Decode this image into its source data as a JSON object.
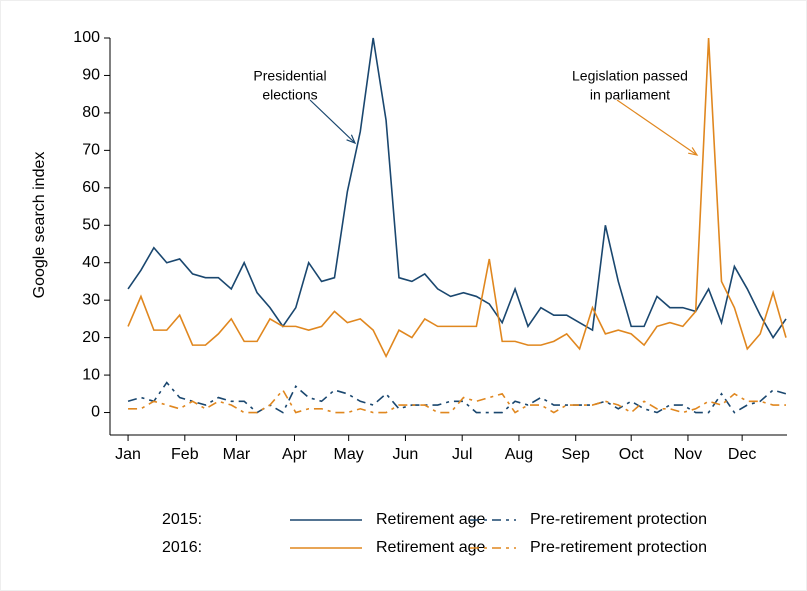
{
  "chart_data": {
    "type": "line",
    "y_label": "Google search index",
    "ylim": [
      -6,
      100
    ],
    "yticks": [
      0,
      10,
      20,
      30,
      40,
      50,
      60,
      70,
      80,
      90,
      100
    ],
    "xlim": [
      -0.4,
      52
    ],
    "xticks": [
      {
        "value": 1,
        "label": "Jan"
      },
      {
        "value": 5.4,
        "label": "Feb"
      },
      {
        "value": 9.4,
        "label": "Mar"
      },
      {
        "value": 13.9,
        "label": "Apr"
      },
      {
        "value": 18.1,
        "label": "May"
      },
      {
        "value": 22.5,
        "label": "Jun"
      },
      {
        "value": 26.9,
        "label": "Jul"
      },
      {
        "value": 31.3,
        "label": "Aug"
      },
      {
        "value": 35.7,
        "label": "Sep"
      },
      {
        "value": 40,
        "label": "Oct"
      },
      {
        "value": 44.4,
        "label": "Nov"
      },
      {
        "value": 48.6,
        "label": "Dec"
      }
    ],
    "x": [
      1,
      2,
      3,
      4,
      5,
      6,
      7,
      8,
      9,
      10,
      11,
      12,
      13,
      14,
      15,
      16,
      17,
      18,
      19,
      20,
      21,
      22,
      23,
      24,
      25,
      26,
      27,
      28,
      29,
      30,
      31,
      32,
      33,
      34,
      35,
      36,
      37,
      38,
      39,
      40,
      41,
      42,
      43,
      44,
      45,
      46,
      47,
      48,
      49,
      50,
      51,
      52
    ],
    "groups": [
      {
        "name": "2015:",
        "series": [
          {
            "name": "Retirement age",
            "color": "#1a476f",
            "dashed": false,
            "values": [
              33,
              38,
              44,
              40,
              41,
              37,
              36,
              36,
              33,
              40,
              32,
              28,
              23,
              28,
              40,
              35,
              36,
              59,
              75,
              100,
              78,
              36,
              35,
              37,
              33,
              31,
              32,
              31,
              29,
              24,
              33,
              23,
              28,
              26,
              26,
              24,
              22,
              50,
              35,
              23,
              23,
              31,
              28,
              28,
              27,
              33,
              24,
              39,
              33,
              26,
              20,
              25
            ]
          },
          {
            "name": "Pre-retirement protection",
            "color": "#1a476f",
            "dashed": true,
            "values": [
              3,
              4,
              3,
              8,
              4,
              3,
              2,
              4,
              3,
              3,
              0,
              2,
              0,
              7,
              4,
              3,
              6,
              5,
              3,
              2,
              5,
              1,
              2,
              2,
              2,
              3,
              3,
              0,
              0,
              0,
              3,
              2,
              4,
              2,
              2,
              2,
              2,
              3,
              1,
              3,
              1,
              0,
              2,
              2,
              0,
              0,
              5,
              0,
              2,
              3,
              6,
              5
            ]
          }
        ]
      },
      {
        "name": "2016:",
        "series": [
          {
            "name": "Retirement age",
            "color": "#e0871f",
            "dashed": false,
            "values": [
              23,
              31,
              22,
              22,
              26,
              18,
              18,
              21,
              25,
              19,
              19,
              25,
              23,
              23,
              22,
              23,
              27,
              24,
              25,
              22,
              15,
              22,
              20,
              25,
              23,
              23,
              23,
              23,
              41,
              19,
              19,
              18,
              18,
              19,
              21,
              17,
              28,
              21,
              22,
              21,
              18,
              23,
              24,
              23,
              27,
              100,
              35,
              28,
              17,
              21,
              32,
              20
            ]
          },
          {
            "name": "Pre-retirement protection",
            "color": "#e0871f",
            "dashed": true,
            "values": [
              1,
              1,
              3,
              2,
              1,
              3,
              1,
              3,
              2,
              0,
              0,
              2,
              6,
              0,
              1,
              1,
              0,
              0,
              1,
              0,
              0,
              2,
              2,
              2,
              0,
              0,
              4,
              3,
              4,
              5,
              0,
              2,
              2,
              0,
              2,
              2,
              2,
              3,
              2,
              0,
              3,
              1,
              1,
              0,
              1,
              3,
              2,
              5,
              3,
              3,
              2,
              2
            ]
          }
        ]
      }
    ],
    "annotations": [
      {
        "lines": [
          "Presidential",
          "elections"
        ],
        "color": "#1a476f"
      },
      {
        "lines": [
          "Legislation passed",
          "in parliament"
        ],
        "color": "#e0871f"
      }
    ]
  }
}
